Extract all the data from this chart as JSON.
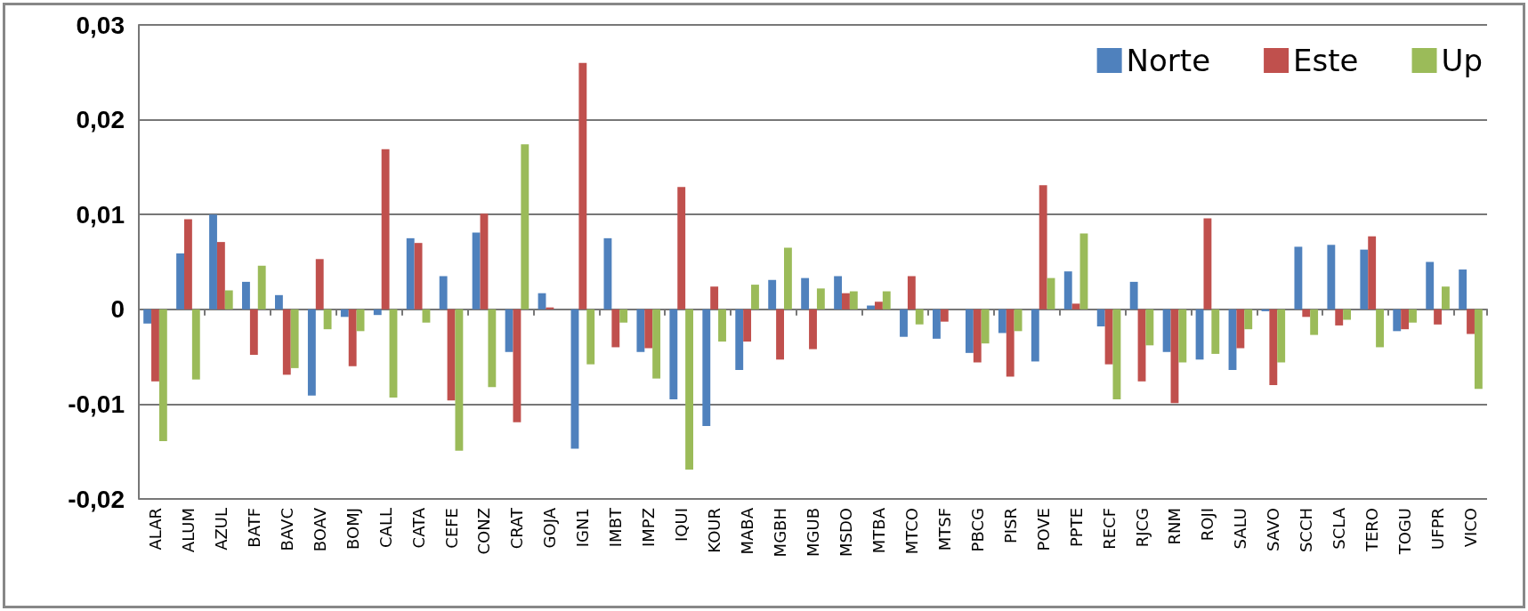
{
  "chart_data": {
    "type": "bar",
    "categories": [
      "ALAR",
      "ALUM",
      "AZUL",
      "BATF",
      "BAVC",
      "BOAV",
      "BOMJ",
      "CALL",
      "CATA",
      "CEFE",
      "CONZ",
      "CRAT",
      "GOJA",
      "IGN1",
      "IMBT",
      "IMPZ",
      "IQUI",
      "KOUR",
      "MABA",
      "MGBH",
      "MGUB",
      "MSDO",
      "MTBA",
      "MTCO",
      "MTSF",
      "PBCG",
      "PISR",
      "POVE",
      "PPTE",
      "RECF",
      "RJCG",
      "RNM",
      "ROJI",
      "SALU",
      "SAVO",
      "SCCH",
      "SCLA",
      "TERO",
      "TOGU",
      "UFPR",
      "VICO"
    ],
    "series": [
      {
        "name": "Norte",
        "color": "#4f81bd",
        "values": [
          -0.0015,
          0.0059,
          0.01,
          0.0029,
          0.0015,
          -0.0091,
          -0.0008,
          -0.0006,
          0.0075,
          0.0035,
          0.0081,
          -0.0045,
          0.0017,
          -0.0147,
          0.0075,
          -0.0045,
          -0.0095,
          -0.0123,
          -0.0064,
          0.0031,
          0.0033,
          0.0035,
          0.0004,
          -0.0029,
          -0.0031,
          -0.0046,
          -0.0025,
          -0.0055,
          0.004,
          -0.0018,
          0.0029,
          -0.0045,
          -0.0053,
          -0.0064,
          -0.0002,
          0.0066,
          0.0068,
          0.0063,
          -0.0023,
          0.005,
          0.0042
        ]
      },
      {
        "name": "Este",
        "color": "#c0504d",
        "values": [
          -0.0076,
          0.0095,
          0.0071,
          -0.0048,
          -0.0069,
          0.0053,
          -0.006,
          0.0169,
          0.007,
          -0.0096,
          0.0101,
          -0.0119,
          0.0002,
          0.026,
          -0.004,
          -0.0041,
          0.0129,
          0.0024,
          -0.0034,
          -0.0053,
          -0.0042,
          0.0017,
          0.0008,
          0.0035,
          -0.0013,
          -0.0056,
          -0.0071,
          0.0131,
          0.0006,
          -0.0058,
          -0.0076,
          -0.0099,
          0.0096,
          -0.0041,
          -0.008,
          -0.0008,
          -0.0017,
          0.0077,
          -0.0021,
          -0.0016,
          -0.0026
        ]
      },
      {
        "name": "Up",
        "color": "#9bbb59",
        "values": [
          -0.0139,
          -0.0074,
          0.002,
          0.0046,
          -0.0062,
          -0.0021,
          -0.0023,
          -0.0093,
          -0.0014,
          -0.0149,
          -0.0082,
          0.0174,
          null,
          -0.0058,
          -0.0014,
          -0.0073,
          -0.0169,
          -0.0034,
          0.0026,
          0.0065,
          0.0022,
          0.0019,
          0.0019,
          -0.0016,
          null,
          -0.0036,
          -0.0023,
          0.0033,
          0.008,
          -0.0095,
          -0.0038,
          -0.0056,
          -0.0047,
          -0.0021,
          -0.0056,
          -0.0027,
          -0.0011,
          -0.004,
          -0.0014,
          0.0024,
          -0.0084
        ]
      }
    ],
    "ylim": [
      -0.02,
      0.03
    ],
    "yticks": [
      {
        "value": -0.02,
        "label": "-0,02"
      },
      {
        "value": -0.01,
        "label": "-0,01"
      },
      {
        "value": 0,
        "label": "0"
      },
      {
        "value": 0.01,
        "label": "0,01"
      },
      {
        "value": 0.02,
        "label": "0,02"
      },
      {
        "value": 0.03,
        "label": "0,03"
      }
    ],
    "grid": "y",
    "legend": "top right"
  }
}
